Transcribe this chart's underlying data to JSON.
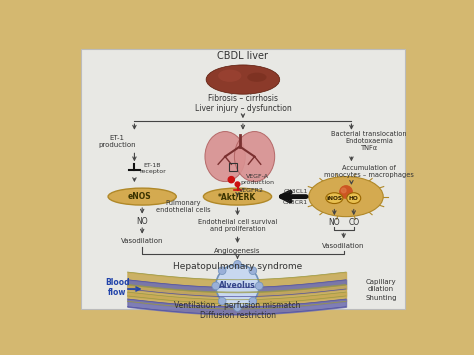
{
  "bg_outer": "#d4b870",
  "bg_inner": "#e8e8e4",
  "title_top": "CBDL liver",
  "fibrosis_text": "Fibrosis – cirrhosis\nLiver injury – dysfunction",
  "et1_text": "ET-1\nproduction",
  "bacterial_text": "Bacterial translocation\nEndotoxaemia\nTNFα",
  "accumulation_text": "Accumulation of\nmonocytes – macrophages",
  "vegfa_text": "VEGF-A\nproduction",
  "vegfr2_text": "VEGFR2",
  "et1b_text": "ET-1B\nreceptor",
  "akt_text": "*Akt/ERK",
  "cx3cl1_text": "CX3CL1",
  "cx3cr1_text": "CX3CR1",
  "enos_text": "eNOS",
  "inos_text": "iNOS",
  "ho_text": "HO",
  "pulm_text": "Pulmonary\nendothelial cells",
  "no1_text": "NO",
  "no2_text": "NO",
  "co_text": "CO",
  "vasodilation1_text": "Vasodilation",
  "vasodilation2_text": "Vasodilation",
  "endothelial_text": "Endothelial cell survival\nand proliferation",
  "angiogenesis_text": "Angiogenesis",
  "hps_text": "Hepatopulmonary syndrome",
  "alveolus_text": "Alveolus",
  "bloodflow_text": "Blood\nflow",
  "capillary_text": "Capillary\ndilation",
  "shunting_text": "Shunting",
  "bottom_text": "Ventilation – perfusion mismatch\nDiffusion restriction",
  "arrow_color": "#444444",
  "cell_color": "#d4aa50",
  "cell_border": "#b08828",
  "alveolus_fill": "#c8d8f0",
  "alveolus_border": "#7090b8",
  "red_dot": "#cc1111",
  "text_color": "#333333",
  "blue_text": "#2244aa"
}
